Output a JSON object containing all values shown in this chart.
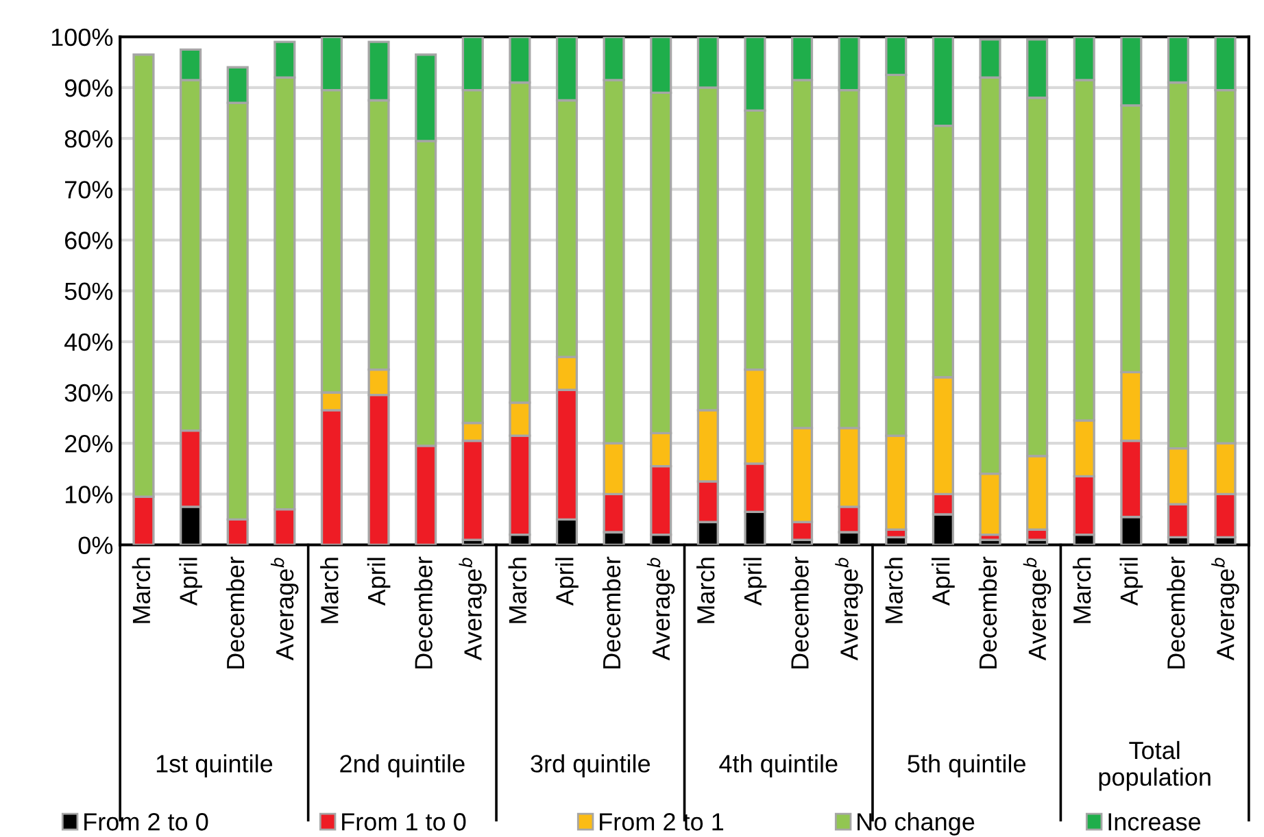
{
  "chart_data": {
    "type": "bar",
    "stacked": true,
    "categories": [
      "March",
      "April",
      "December",
      "Average$^{b}$",
      "March",
      "April",
      "December",
      "Average$^{b}$",
      "March",
      "April",
      "December",
      "Average$^{b}$",
      "March",
      "April",
      "December",
      "Average$^{b}$",
      "March",
      "April",
      "December",
      "Average$^{b}$",
      "March",
      "April",
      "December",
      "Average$^{b}$"
    ],
    "series": [
      {
        "name": "From 2 to 0",
        "color": "#000000",
        "values": [
          0,
          7.5,
          0,
          0,
          0,
          0,
          0,
          1,
          2,
          5,
          2.5,
          2,
          4.5,
          6.5,
          1,
          2.5,
          1.5,
          6,
          1,
          1,
          2,
          5.5,
          1.5,
          1.5
        ]
      },
      {
        "name": "From 1 to 0",
        "color": "#ee1c25",
        "values": [
          9.5,
          15,
          5,
          7,
          26.5,
          29.5,
          19.5,
          19.5,
          19.5,
          25.5,
          7.5,
          13.5,
          8,
          9.5,
          3.5,
          5,
          1.5,
          4,
          1,
          2,
          11.5,
          15,
          6.5,
          8.5
        ]
      },
      {
        "name": "From 2 to 1",
        "color": "#fbbc14",
        "values": [
          0,
          0,
          0,
          0,
          3.5,
          5,
          0,
          3.5,
          6.5,
          6.5,
          10,
          6.5,
          14,
          18.5,
          18.5,
          15.5,
          18.5,
          23,
          12,
          14.5,
          11,
          13.5,
          11,
          10
        ]
      },
      {
        "name": "No change",
        "color": "#92c652",
        "values": [
          87,
          69,
          82,
          85,
          59.5,
          53,
          60,
          65.5,
          63,
          50.5,
          71.5,
          67,
          63.5,
          51,
          68.5,
          66.5,
          71,
          49.5,
          78,
          70.5,
          67,
          52.5,
          72,
          69.5
        ]
      },
      {
        "name": "Increase",
        "color": "#1fae4b",
        "values": [
          0,
          6,
          7,
          7,
          10.5,
          11.5,
          17,
          10.5,
          9,
          12.5,
          8.5,
          11,
          10,
          14.5,
          8.5,
          10.5,
          7.5,
          17.5,
          7.5,
          11.5,
          8.5,
          13.5,
          9,
          10.5
        ]
      }
    ],
    "annotations": [
      "1st quintile",
      "2nd quintile",
      "3rd quintile",
      "4th quintile",
      "5th quintile",
      "Total\npopulation"
    ],
    "ylim": [
      0,
      100
    ],
    "yticks": [
      {
        "value": 0,
        "label": "0%"
      },
      {
        "value": 10,
        "label": "10%"
      },
      {
        "value": 20,
        "label": "20%"
      },
      {
        "value": 30,
        "label": "30%"
      },
      {
        "value": 40,
        "label": "40%"
      },
      {
        "value": 50,
        "label": "50%"
      },
      {
        "value": 60,
        "label": "60%"
      },
      {
        "value": 70,
        "label": "70%"
      },
      {
        "value": 80,
        "label": "80%"
      },
      {
        "value": 90,
        "label": "90%"
      },
      {
        "value": 100,
        "label": "100%"
      }
    ],
    "grid": "y",
    "legend": "bottom"
  }
}
